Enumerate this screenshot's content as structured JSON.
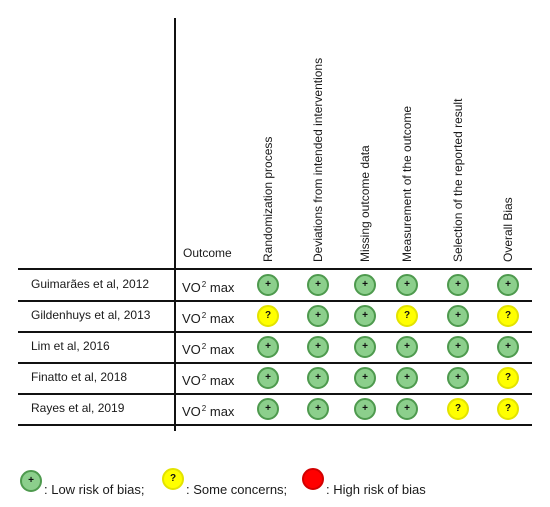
{
  "header": {
    "outcome_label": "Outcome",
    "domains": [
      "Randomization process",
      "Deviations from intended interventions",
      "Missing outcome data",
      "Measurement of the outcome",
      "Selection of the reported result",
      "Overall Bias"
    ]
  },
  "rows": [
    {
      "study": "Guimarães et al, 2012",
      "outcome": "VO",
      "outcome_sup": "2",
      "outcome_suffix": "max",
      "ratings": [
        "low",
        "low",
        "low",
        "low",
        "low",
        "low"
      ]
    },
    {
      "study": "Gildenhuys et al, 2013",
      "outcome": "VO",
      "outcome_sup": "2",
      "outcome_suffix": "max",
      "ratings": [
        "some",
        "low",
        "low",
        "some",
        "low",
        "some"
      ]
    },
    {
      "study": "Lim et al, 2016",
      "outcome": "VO",
      "outcome_sup": "2",
      "outcome_suffix": "max",
      "ratings": [
        "low",
        "low",
        "low",
        "low",
        "low",
        "low"
      ]
    },
    {
      "study": "Finatto et al, 2018",
      "outcome": "VO",
      "outcome_sup": "2",
      "outcome_suffix": "max",
      "ratings": [
        "low",
        "low",
        "low",
        "low",
        "low",
        "some"
      ]
    },
    {
      "study": "Rayes et al, 2019",
      "outcome": "VO",
      "outcome_sup": "2",
      "outcome_suffix": "max",
      "ratings": [
        "low",
        "low",
        "low",
        "low",
        "some",
        "some"
      ]
    }
  ],
  "symbols": {
    "low": "+",
    "some": "?",
    "high": ""
  },
  "legend": {
    "low": ": Low risk of bias;",
    "some": ": Some concerns;",
    "high": ": High risk of bias"
  },
  "colors": {
    "low": "#8ccf8c",
    "some": "#ffff00",
    "high": "#ff0000"
  }
}
